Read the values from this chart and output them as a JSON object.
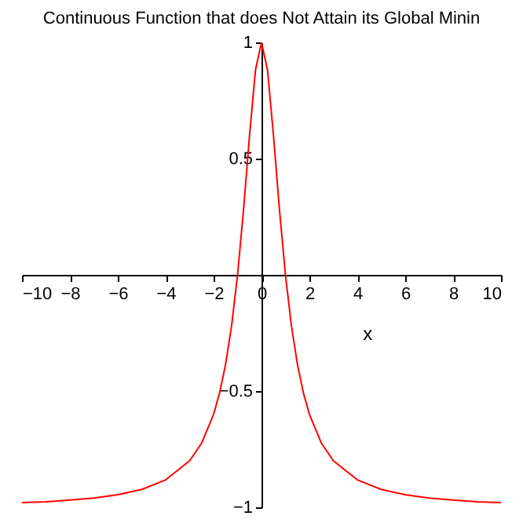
{
  "chart_data": {
    "type": "line",
    "title": "Continuous Function that does Not Attain its Global Minin",
    "xlabel": "x",
    "x": [
      -10,
      -9,
      -8,
      -7,
      -6,
      -5,
      -4,
      -3,
      -2.5,
      -2,
      -1.75,
      -1.5,
      -1.25,
      -1,
      -0.75,
      -0.5,
      -0.25,
      0,
      0.25,
      0.5,
      0.75,
      1,
      1.25,
      1.5,
      1.75,
      2,
      2.5,
      3,
      4,
      5,
      6,
      7,
      8,
      9,
      10
    ],
    "series": [
      {
        "color": "#ff0000",
        "values": [
          -0.98,
          -0.976,
          -0.969,
          -0.96,
          -0.946,
          -0.923,
          -0.882,
          -0.8,
          -0.724,
          -0.6,
          -0.508,
          -0.385,
          -0.22,
          0,
          0.28,
          0.6,
          0.882,
          1,
          0.882,
          0.6,
          0.28,
          0,
          -0.22,
          -0.385,
          -0.508,
          -0.6,
          -0.724,
          -0.8,
          -0.882,
          -0.923,
          -0.946,
          -0.96,
          -0.969,
          -0.976,
          -0.98
        ]
      }
    ],
    "xlim": [
      -10,
      10
    ],
    "ylim": [
      -1,
      1
    ],
    "xticks": [
      -10,
      -8,
      -6,
      -4,
      -2,
      0,
      2,
      4,
      6,
      8,
      10
    ],
    "yticks": [
      -1,
      -0.5,
      0.5,
      1
    ],
    "grid": false,
    "marker": "none",
    "line_style": "solid"
  }
}
